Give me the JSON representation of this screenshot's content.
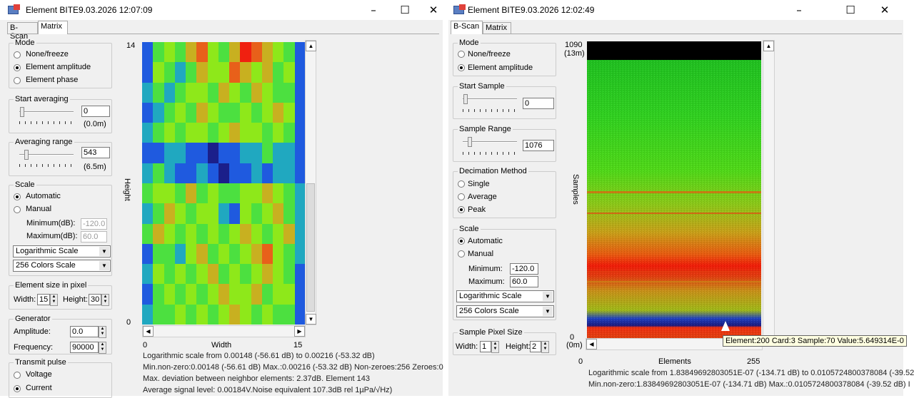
{
  "win1": {
    "title": "Element BITE9.03.2026 12:07:09",
    "tabs": [
      "B-Scan",
      "Matrix"
    ],
    "mode": {
      "label": "Mode",
      "options": [
        "None/freeze",
        "Element amplitude",
        "Element phase"
      ],
      "selected": 1
    },
    "start_averaging": {
      "label": "Start averaging",
      "value": "0",
      "sub": "(0.0m)"
    },
    "averaging_range": {
      "label": "Averaging range",
      "value": "543",
      "sub": "(6.5m)"
    },
    "scale": {
      "label": "Scale",
      "options": [
        "Automatic",
        "Manual"
      ],
      "selected": 0,
      "min_label": "Minimum(dB):",
      "min_value": "-120.0",
      "max_label": "Maximum(dB):",
      "max_value": "60.0",
      "type": "Logarithmic Scale",
      "colors": "256 Colors Scale"
    },
    "element_size": {
      "label": "Element size in pixel",
      "width_label": "Width:",
      "width": "15",
      "height_label": "Height:",
      "height": "30"
    },
    "generator": {
      "label": "Generator",
      "amp_label": "Amplitude:",
      "amp": "0.0",
      "freq_label": "Frequency:",
      "freq": "90000"
    },
    "transmit": {
      "label": "Transmit pulse",
      "options": [
        "Voltage",
        "Current"
      ],
      "selected": 1
    },
    "axis": {
      "y_top": "14",
      "y_bottom": "0",
      "y_label": "Height",
      "x_left": "0",
      "x_right": "15",
      "x_label": "Width"
    },
    "info": [
      "Logarithmic scale from 0.00148 (-56.61 dB) to 0.00216 (-53.32 dB)",
      "Min.non-zero:0.00148 (-56.61 dB) Max.:0.00216 (-53.32 dB) Non-zeroes:256 Zeroes:0",
      "Max. deviation between neighbor elements: 2.37dB. Element 143",
      "Average signal level: 0.00184V.Noise equivalent 107.3dB rel 1µPa/√Hz)"
    ],
    "chart_data": {
      "type": "heatmap",
      "cols": 15,
      "rows": 14,
      "color_scale": [
        "#1b1f8a",
        "#1f5adf",
        "#20a8c0",
        "#4ce040",
        "#8ee81a",
        "#c8b020",
        "#e8601a",
        "#f02010"
      ],
      "matrix": [
        [
          1,
          3,
          4,
          3,
          5,
          6,
          4,
          3,
          5,
          7,
          6,
          5,
          4,
          3,
          1
        ],
        [
          1,
          4,
          3,
          2,
          3,
          5,
          4,
          4,
          6,
          5,
          4,
          5,
          3,
          4,
          1
        ],
        [
          2,
          3,
          2,
          3,
          4,
          4,
          3,
          5,
          4,
          3,
          5,
          4,
          3,
          3,
          1
        ],
        [
          1,
          2,
          3,
          4,
          3,
          5,
          4,
          3,
          3,
          4,
          3,
          4,
          5,
          4,
          1
        ],
        [
          2,
          3,
          4,
          3,
          4,
          4,
          3,
          4,
          5,
          4,
          4,
          3,
          4,
          3,
          1
        ],
        [
          1,
          1,
          2,
          2,
          1,
          1,
          0,
          1,
          1,
          2,
          2,
          3,
          2,
          2,
          1
        ],
        [
          2,
          3,
          2,
          1,
          1,
          2,
          1,
          0,
          1,
          1,
          2,
          1,
          2,
          2,
          1
        ],
        [
          3,
          4,
          4,
          3,
          5,
          3,
          4,
          3,
          3,
          4,
          4,
          5,
          4,
          3,
          2
        ],
        [
          2,
          3,
          5,
          4,
          3,
          4,
          4,
          2,
          1,
          4,
          3,
          4,
          5,
          3,
          2
        ],
        [
          3,
          5,
          4,
          3,
          4,
          3,
          4,
          3,
          4,
          5,
          4,
          3,
          4,
          5,
          2
        ],
        [
          1,
          3,
          3,
          2,
          4,
          5,
          3,
          4,
          3,
          4,
          5,
          6,
          4,
          3,
          2
        ],
        [
          2,
          4,
          3,
          4,
          3,
          4,
          5,
          3,
          4,
          3,
          4,
          5,
          4,
          3,
          1
        ],
        [
          1,
          3,
          4,
          3,
          4,
          3,
          4,
          5,
          4,
          4,
          5,
          3,
          4,
          4,
          1
        ],
        [
          2,
          3,
          3,
          4,
          3,
          4,
          3,
          4,
          5,
          4,
          3,
          4,
          3,
          3,
          1
        ]
      ]
    }
  },
  "win2": {
    "title": "Element BITE9.03.2026 12:02:49",
    "tabs": [
      "B-Scan",
      "Matrix"
    ],
    "mode": {
      "label": "Mode",
      "options": [
        "None/freeze",
        "Element amplitude"
      ],
      "selected": 1
    },
    "start_sample": {
      "label": "Start Sample",
      "value": "0"
    },
    "sample_range": {
      "label": "Sample Range",
      "value": "1076"
    },
    "decimation": {
      "label": "Decimation Method",
      "options": [
        "Single",
        "Average",
        "Peak"
      ],
      "selected": 2
    },
    "scale": {
      "label": "Scale",
      "options": [
        "Automatic",
        "Manual"
      ],
      "selected": 0,
      "min_label": "Minimum:",
      "min_value": "-120.0",
      "max_label": "Maximum:",
      "max_value": "60.0",
      "type": "Logarithmic Scale",
      "colors": "256 Colors Scale"
    },
    "pixel_size": {
      "label": "Sample Pixel Size",
      "width_label": "Width:",
      "width": "1",
      "height_label": "Height:",
      "height": "2"
    },
    "axis": {
      "y_top": "1090",
      "y_top_sub": "(13m)",
      "y_bottom": "0",
      "y_bottom_sub": "(0m)",
      "y_label": "Samples",
      "x_left": "0",
      "x_right": "255",
      "x_label": "Elements"
    },
    "tooltip": "Element:200 Card:3 Sample:70 Value:5.649314E-0",
    "info": [
      "Logarithmic scale from 1.83849692803051E-07 (-134.71 dB) to 0.0105724800378084 (-39.52",
      "Min.non-zero:1.83849692803051E-07 (-134.71 dB) Max.:0.0105724800378084 (-39.52 dB) I"
    ]
  }
}
